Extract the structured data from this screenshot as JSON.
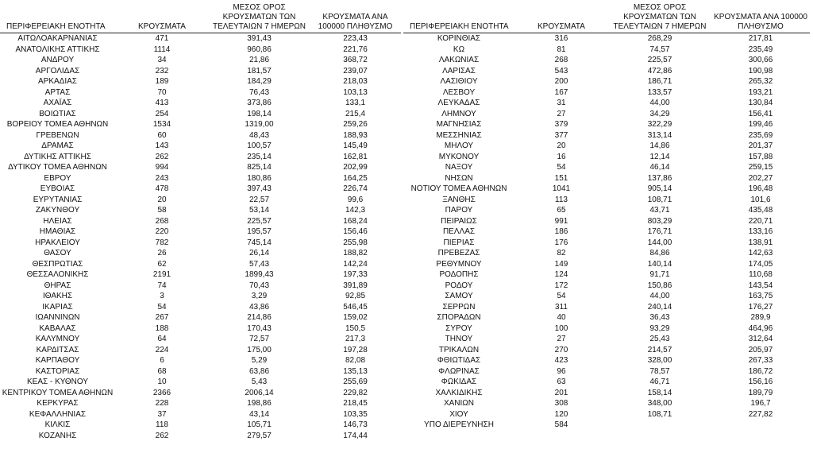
{
  "tables": [
    {
      "header": [
        "ΠΕΡΙΦΕΡΕΙΑΚΗ ΕΝΟΤΗΤΑ",
        "ΚΡΟΥΣΜΑΤΑ",
        "ΜΕΣΟΣ ΟΡΟΣ ΚΡΟΥΣΜΑΤΩΝ ΤΩΝ ΤΕΛΕΥΤΑΙΩΝ 7 ΗΜΕΡΩΝ",
        "ΚΡΟΥΣΜΑΤΑ ΑΝΑ 100000 ΠΛΗΘΥΣΜΟ"
      ],
      "rows": [
        [
          "ΑΙΤΩΛΟΑΚΑΡΝΑΝΙΑΣ",
          "471",
          "391,43",
          "223,43"
        ],
        [
          "ΑΝΑΤΟΛΙΚΗΣ ΑΤΤΙΚΗΣ",
          "1114",
          "960,86",
          "221,76"
        ],
        [
          "ΑΝΔΡΟΥ",
          "34",
          "21,86",
          "368,72"
        ],
        [
          "ΑΡΓΟΛΙΔΑΣ",
          "232",
          "181,57",
          "239,07"
        ],
        [
          "ΑΡΚΑΔΙΑΣ",
          "189",
          "184,29",
          "218,03"
        ],
        [
          "ΑΡΤΑΣ",
          "70",
          "76,43",
          "103,13"
        ],
        [
          "ΑΧΑΪΑΣ",
          "413",
          "373,86",
          "133,1"
        ],
        [
          "ΒΟΙΩΤΙΑΣ",
          "254",
          "198,14",
          "215,4"
        ],
        [
          "ΒΟΡΕΙΟΥ ΤΟΜΕΑ ΑΘΗΝΩΝ",
          "1534",
          "1319,00",
          "259,26"
        ],
        [
          "ΓΡΕΒΕΝΩΝ",
          "60",
          "48,43",
          "188,93"
        ],
        [
          "ΔΡΑΜΑΣ",
          "143",
          "100,57",
          "145,49"
        ],
        [
          "ΔΥΤΙΚΗΣ ΑΤΤΙΚΗΣ",
          "262",
          "235,14",
          "162,81"
        ],
        [
          "ΔΥΤΙΚΟΥ ΤΟΜΕΑ ΑΘΗΝΩΝ",
          "994",
          "825,14",
          "202,99"
        ],
        [
          "ΕΒΡΟΥ",
          "243",
          "180,86",
          "164,25"
        ],
        [
          "ΕΥΒΟΙΑΣ",
          "478",
          "397,43",
          "226,74"
        ],
        [
          "ΕΥΡΥΤΑΝΙΑΣ",
          "20",
          "22,57",
          "99,6"
        ],
        [
          "ΖΑΚΥΝΘΟΥ",
          "58",
          "53,14",
          "142,3"
        ],
        [
          "ΗΛΕΙΑΣ",
          "268",
          "225,57",
          "168,24"
        ],
        [
          "ΗΜΑΘΙΑΣ",
          "220",
          "195,57",
          "156,46"
        ],
        [
          "ΗΡΑΚΛΕΙΟΥ",
          "782",
          "745,14",
          "255,98"
        ],
        [
          "ΘΑΣΟΥ",
          "26",
          "26,14",
          "188,82"
        ],
        [
          "ΘΕΣΠΡΩΤΙΑΣ",
          "62",
          "57,43",
          "142,24"
        ],
        [
          "ΘΕΣΣΑΛΟΝΙΚΗΣ",
          "2191",
          "1899,43",
          "197,33"
        ],
        [
          "ΘΗΡΑΣ",
          "74",
          "70,43",
          "391,89"
        ],
        [
          "ΙΘΑΚΗΣ",
          "3",
          "3,29",
          "92,85"
        ],
        [
          "ΙΚΑΡΙΑΣ",
          "54",
          "43,86",
          "546,45"
        ],
        [
          "ΙΩΑΝΝΙΝΩΝ",
          "267",
          "214,86",
          "159,02"
        ],
        [
          "ΚΑΒΑΛΑΣ",
          "188",
          "170,43",
          "150,5"
        ],
        [
          "ΚΑΛΥΜΝΟΥ",
          "64",
          "72,57",
          "217,3"
        ],
        [
          "ΚΑΡΔΙΤΣΑΣ",
          "224",
          "175,00",
          "197,28"
        ],
        [
          "ΚΑΡΠΑΘΟΥ",
          "6",
          "5,29",
          "82,08"
        ],
        [
          "ΚΑΣΤΟΡΙΑΣ",
          "68",
          "63,86",
          "135,13"
        ],
        [
          "ΚΕΑΣ - ΚΥΘΝΟΥ",
          "10",
          "5,43",
          "255,69"
        ],
        [
          "ΚΕΝΤΡΙΚΟΥ ΤΟΜΕΑ ΑΘΗΝΩΝ",
          "2366",
          "2006,14",
          "229,82"
        ],
        [
          "ΚΕΡΚΥΡΑΣ",
          "228",
          "198,86",
          "218,45"
        ],
        [
          "ΚΕΦΑΛΛΗΝΙΑΣ",
          "37",
          "43,14",
          "103,35"
        ],
        [
          "ΚΙΛΚΙΣ",
          "118",
          "105,71",
          "146,73"
        ],
        [
          "ΚΟΖΑΝΗΣ",
          "262",
          "279,57",
          "174,44"
        ]
      ]
    },
    {
      "header": [
        "ΠΕΡΙΦΕΡΕΙΑΚΗ ΕΝΟΤΗΤΑ",
        "ΚΡΟΥΣΜΑΤΑ",
        "ΜΕΣΟΣ ΟΡΟΣ ΚΡΟΥΣΜΑΤΩΝ ΤΩΝ ΤΕΛΕΥΤΑΙΩΝ 7 ΗΜΕΡΩΝ",
        "ΚΡΟΥΣΜΑΤΑ ΑΝΑ 100000 ΠΛΗΘΥΣΜΟ"
      ],
      "rows": [
        [
          "ΚΟΡΙΝΘΙΑΣ",
          "316",
          "268,29",
          "217,81"
        ],
        [
          "ΚΩ",
          "81",
          "74,57",
          "235,49"
        ],
        [
          "ΛΑΚΩΝΙΑΣ",
          "268",
          "225,57",
          "300,66"
        ],
        [
          "ΛΑΡΙΣΑΣ",
          "543",
          "472,86",
          "190,98"
        ],
        [
          "ΛΑΣΙΘΙΟΥ",
          "200",
          "186,71",
          "265,32"
        ],
        [
          "ΛΕΣΒΟΥ",
          "167",
          "133,57",
          "193,21"
        ],
        [
          "ΛΕΥΚΑΔΑΣ",
          "31",
          "44,00",
          "130,84"
        ],
        [
          "ΛΗΜΝΟΥ",
          "27",
          "34,29",
          "156,41"
        ],
        [
          "ΜΑΓΝΗΣΙΑΣ",
          "379",
          "322,29",
          "199,46"
        ],
        [
          "ΜΕΣΣΗΝΙΑΣ",
          "377",
          "313,14",
          "235,69"
        ],
        [
          "ΜΗΛΟΥ",
          "20",
          "14,86",
          "201,37"
        ],
        [
          "ΜΥΚΟΝΟΥ",
          "16",
          "12,14",
          "157,88"
        ],
        [
          "ΝΑΞΟΥ",
          "54",
          "46,14",
          "259,15"
        ],
        [
          "ΝΗΣΩΝ",
          "151",
          "137,86",
          "202,27"
        ],
        [
          "ΝΟΤΙΟΥ ΤΟΜΕΑ ΑΘΗΝΩΝ",
          "1041",
          "905,14",
          "196,48"
        ],
        [
          "ΞΑΝΘΗΣ",
          "113",
          "108,71",
          "101,6"
        ],
        [
          "ΠΑΡΟΥ",
          "65",
          "43,71",
          "435,48"
        ],
        [
          "ΠΕΙΡΑΙΩΣ",
          "991",
          "803,29",
          "220,71"
        ],
        [
          "ΠΕΛΛΑΣ",
          "186",
          "176,71",
          "133,16"
        ],
        [
          "ΠΙΕΡΙΑΣ",
          "176",
          "144,00",
          "138,91"
        ],
        [
          "ΠΡΕΒΕΖΑΣ",
          "82",
          "84,86",
          "142,63"
        ],
        [
          "ΡΕΘΥΜΝΟΥ",
          "149",
          "140,14",
          "174,05"
        ],
        [
          "ΡΟΔΟΠΗΣ",
          "124",
          "91,71",
          "110,68"
        ],
        [
          "ΡΟΔΟΥ",
          "172",
          "150,86",
          "143,54"
        ],
        [
          "ΣΑΜΟΥ",
          "54",
          "44,00",
          "163,75"
        ],
        [
          "ΣΕΡΡΩΝ",
          "311",
          "240,14",
          "176,27"
        ],
        [
          "ΣΠΟΡΑΔΩΝ",
          "40",
          "36,43",
          "289,9"
        ],
        [
          "ΣΥΡΟΥ",
          "100",
          "93,29",
          "464,96"
        ],
        [
          "ΤΗΝΟΥ",
          "27",
          "25,43",
          "312,64"
        ],
        [
          "ΤΡΙΚΑΛΩΝ",
          "270",
          "214,57",
          "205,97"
        ],
        [
          "ΦΘΙΩΤΙΔΑΣ",
          "423",
          "328,00",
          "267,33"
        ],
        [
          "ΦΛΩΡΙΝΑΣ",
          "96",
          "78,57",
          "186,72"
        ],
        [
          "ΦΩΚΙΔΑΣ",
          "63",
          "46,71",
          "156,16"
        ],
        [
          "ΧΑΛΚΙΔΙΚΗΣ",
          "201",
          "158,14",
          "189,79"
        ],
        [
          "ΧΑΝΙΩΝ",
          "308",
          "348,00",
          "196,7"
        ],
        [
          "ΧΙΟΥ",
          "120",
          "108,71",
          "227,82"
        ],
        [
          "ΥΠΟ ΔΙΕΡΕΥΝΗΣΗ",
          "584"
        ]
      ]
    }
  ]
}
